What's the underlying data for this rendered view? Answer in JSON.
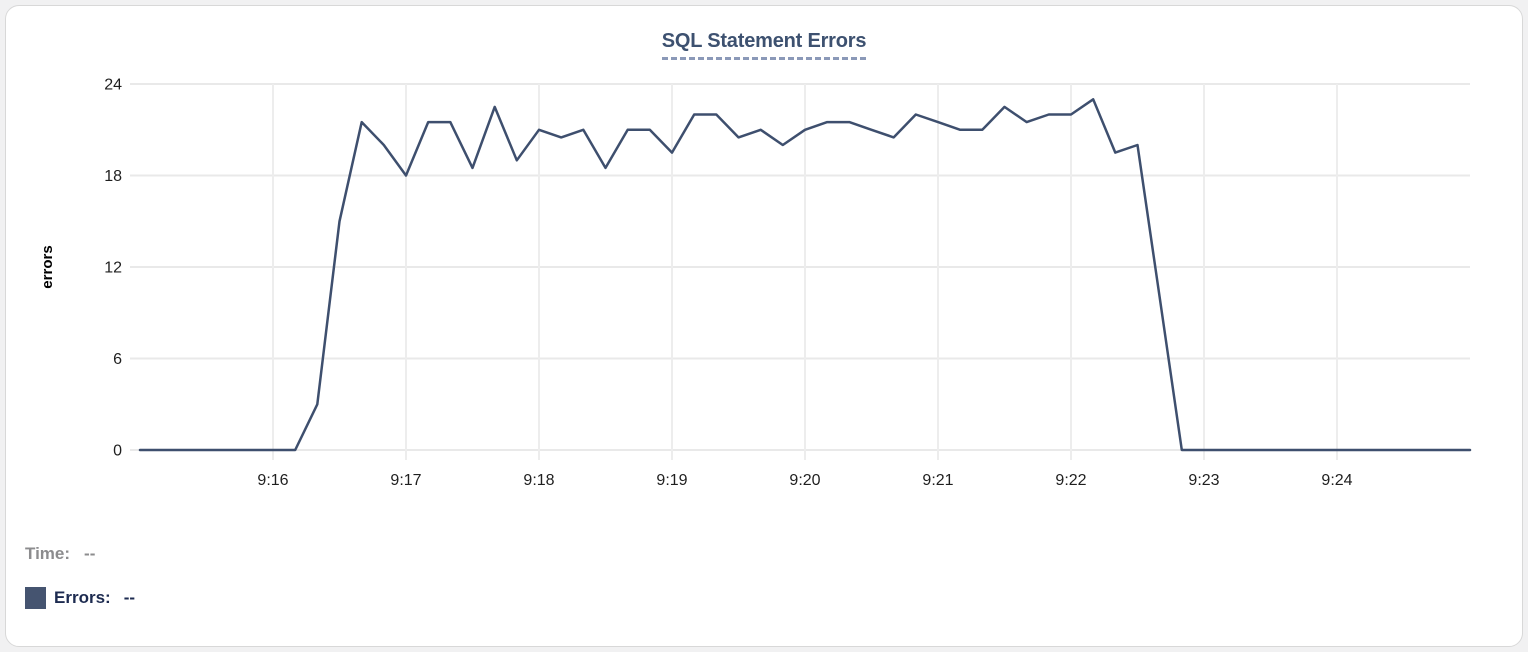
{
  "chart_data": {
    "type": "line",
    "title": "SQL Statement Errors",
    "ylabel": "errors",
    "ylim": [
      0,
      24
    ],
    "y_ticks": [
      0,
      6,
      12,
      18,
      24
    ],
    "x_tick_labels": [
      "9:16",
      "9:17",
      "9:18",
      "9:19",
      "9:20",
      "9:21",
      "9:22",
      "9:23",
      "9:24"
    ],
    "x_start": "9:15:00",
    "x_end": "9:25:00",
    "x_interval_seconds": 10,
    "grid": true,
    "legend_position": "none",
    "series": [
      {
        "name": "Errors",
        "color": "#3e4f6e",
        "values": [
          0,
          0,
          0,
          0,
          0,
          0,
          0,
          0,
          3,
          15,
          21.5,
          20,
          18,
          21.5,
          21.5,
          18.5,
          22.5,
          19,
          21,
          20.5,
          21,
          18.5,
          21,
          21,
          19.5,
          22,
          22,
          20.5,
          21,
          20,
          21,
          21.5,
          21.5,
          21,
          20.5,
          22,
          21.5,
          21,
          21,
          22.5,
          21.5,
          22,
          22,
          23,
          19.5,
          20,
          10,
          0,
          0,
          0,
          0,
          0,
          0,
          0,
          0,
          0,
          0,
          0,
          0,
          0,
          0
        ]
      }
    ]
  },
  "tooltip": {
    "time_label": "Time:",
    "time_value": "--",
    "errors_label": "Errors:",
    "errors_value": "--",
    "swatch_color": "#455470"
  },
  "colors": {
    "line": "#3e4f6e",
    "title": "#3d5170",
    "title_underline": "#8b99b8",
    "gridline": "#e9e9e9",
    "tick_text": "#1f1f1f",
    "time_text": "#8c8c8e",
    "errors_text": "#1d2b50",
    "card_border": "#d8d8d8",
    "background": "#ffffff"
  }
}
